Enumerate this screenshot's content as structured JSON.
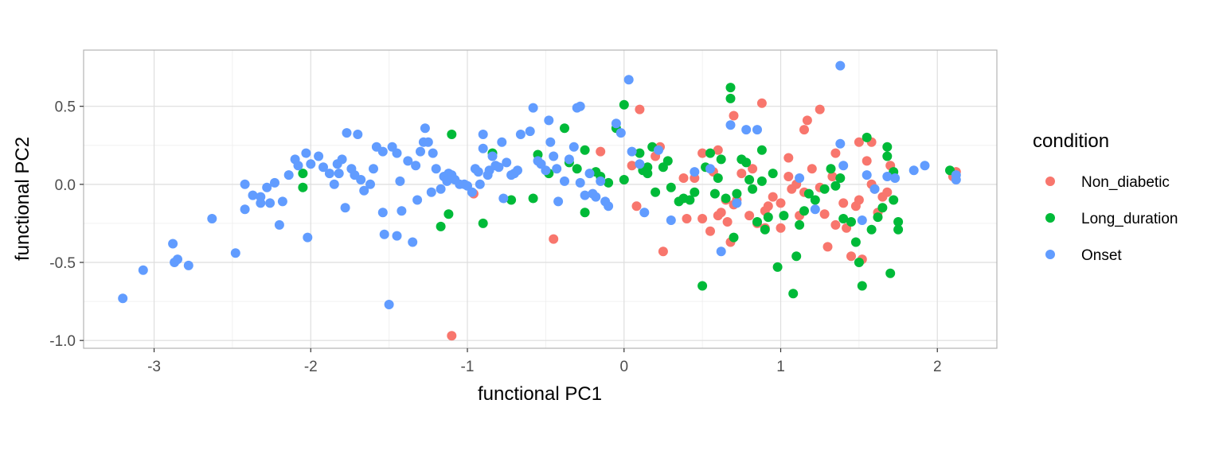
{
  "chart_data": {
    "type": "scatter",
    "title": "",
    "xlabel": "functional PC1",
    "ylabel": "functional PC2",
    "xlim": [
      -3.45,
      2.38
    ],
    "ylim": [
      -1.05,
      0.86
    ],
    "xticks": [
      -3,
      -2,
      -1,
      0,
      1,
      2
    ],
    "xtick_labels": [
      "-3",
      "-2",
      "-1",
      "0",
      "1",
      "2"
    ],
    "yticks": [
      -1.0,
      -0.5,
      0.0,
      0.5
    ],
    "ytick_labels": [
      "-1.0",
      "-0.5",
      "0.0",
      "0.5"
    ],
    "grid": true,
    "legend": {
      "title": "condition",
      "placement": "right"
    },
    "series": [
      {
        "name": "Non_diabetic",
        "color": "#F8766D",
        "points": [
          [
            -1.1,
            -0.97
          ],
          [
            -0.96,
            -0.06
          ],
          [
            -0.45,
            -0.35
          ],
          [
            -0.15,
            0.21
          ],
          [
            0.05,
            0.12
          ],
          [
            0.1,
            0.48
          ],
          [
            0.08,
            -0.14
          ],
          [
            0.25,
            -0.43
          ],
          [
            0.23,
            0.24
          ],
          [
            0.4,
            -0.22
          ],
          [
            0.5,
            0.2
          ],
          [
            0.6,
            0.22
          ],
          [
            0.7,
            0.44
          ],
          [
            0.88,
            0.52
          ],
          [
            1.25,
            0.48
          ],
          [
            1.15,
            0.35
          ],
          [
            1.17,
            0.41
          ],
          [
            1.35,
            0.2
          ],
          [
            1.5,
            0.27
          ],
          [
            1.58,
            0.27
          ],
          [
            0.5,
            -0.22
          ],
          [
            0.55,
            -0.3
          ],
          [
            0.6,
            -0.2
          ],
          [
            0.65,
            -0.1
          ],
          [
            0.7,
            -0.13
          ],
          [
            0.75,
            0.07
          ],
          [
            0.8,
            -0.2
          ],
          [
            0.85,
            -0.25
          ],
          [
            0.9,
            -0.28
          ],
          [
            0.95,
            -0.08
          ],
          [
            1.0,
            -0.12
          ],
          [
            1.05,
            0.17
          ],
          [
            1.07,
            -0.03
          ],
          [
            1.1,
            0.0
          ],
          [
            1.15,
            -0.05
          ],
          [
            1.2,
            0.1
          ],
          [
            1.25,
            -0.02
          ],
          [
            1.3,
            -0.4
          ],
          [
            1.35,
            -0.26
          ],
          [
            1.4,
            -0.12
          ],
          [
            1.45,
            -0.46
          ],
          [
            1.5,
            -0.1
          ],
          [
            1.55,
            0.15
          ],
          [
            1.6,
            -0.03
          ],
          [
            1.62,
            -0.18
          ],
          [
            1.65,
            -0.08
          ],
          [
            1.7,
            0.12
          ],
          [
            1.52,
            -0.48
          ],
          [
            0.68,
            -0.37
          ],
          [
            0.62,
            -0.18
          ],
          [
            0.72,
            -0.1
          ],
          [
            0.57,
            0.08
          ],
          [
            0.45,
            0.04
          ],
          [
            0.92,
            -0.14
          ],
          [
            1.0,
            -0.28
          ],
          [
            1.12,
            -0.2
          ],
          [
            1.28,
            -0.19
          ],
          [
            1.42,
            -0.28
          ],
          [
            1.58,
            0.0
          ],
          [
            1.68,
            -0.05
          ],
          [
            2.1,
            0.05
          ],
          [
            2.12,
            0.08
          ],
          [
            0.2,
            0.18
          ],
          [
            0.38,
            0.04
          ],
          [
            0.82,
            0.1
          ],
          [
            0.9,
            -0.17
          ],
          [
            1.33,
            0.05
          ],
          [
            1.48,
            -0.14
          ],
          [
            1.05,
            0.05
          ],
          [
            0.66,
            -0.24
          ]
        ]
      },
      {
        "name": "Long_duration",
        "color": "#00BA38",
        "points": [
          [
            -2.05,
            0.07
          ],
          [
            -2.05,
            -0.02
          ],
          [
            -1.1,
            0.32
          ],
          [
            -1.12,
            -0.19
          ],
          [
            -1.17,
            -0.27
          ],
          [
            -0.9,
            -0.25
          ],
          [
            -0.84,
            0.2
          ],
          [
            -0.72,
            -0.1
          ],
          [
            -0.58,
            -0.09
          ],
          [
            -0.55,
            0.19
          ],
          [
            -0.48,
            0.07
          ],
          [
            -0.38,
            0.36
          ],
          [
            -0.35,
            0.14
          ],
          [
            -0.3,
            0.1
          ],
          [
            -0.25,
            0.22
          ],
          [
            -0.25,
            -0.18
          ],
          [
            -0.18,
            0.08
          ],
          [
            -0.15,
            0.05
          ],
          [
            -0.1,
            0.01
          ],
          [
            -0.05,
            0.36
          ],
          [
            0.0,
            0.51
          ],
          [
            0.0,
            0.03
          ],
          [
            0.1,
            0.2
          ],
          [
            0.12,
            0.09
          ],
          [
            0.15,
            0.07
          ],
          [
            0.18,
            0.24
          ],
          [
            0.2,
            -0.05
          ],
          [
            0.25,
            0.11
          ],
          [
            0.28,
            0.15
          ],
          [
            0.35,
            -0.11
          ],
          [
            0.38,
            -0.09
          ],
          [
            0.42,
            -0.1
          ],
          [
            0.45,
            -0.05
          ],
          [
            0.5,
            -0.65
          ],
          [
            0.55,
            0.2
          ],
          [
            0.6,
            0.04
          ],
          [
            0.62,
            0.16
          ],
          [
            0.65,
            -0.09
          ],
          [
            0.68,
            0.62
          ],
          [
            0.68,
            0.55
          ],
          [
            0.7,
            -0.34
          ],
          [
            0.72,
            -0.06
          ],
          [
            0.75,
            0.16
          ],
          [
            0.78,
            0.14
          ],
          [
            0.8,
            0.03
          ],
          [
            0.82,
            -0.03
          ],
          [
            0.85,
            -0.24
          ],
          [
            0.88,
            0.22
          ],
          [
            0.9,
            -0.29
          ],
          [
            0.92,
            -0.21
          ],
          [
            0.95,
            0.07
          ],
          [
            0.98,
            -0.53
          ],
          [
            1.02,
            -0.2
          ],
          [
            1.08,
            -0.7
          ],
          [
            1.1,
            -0.46
          ],
          [
            1.12,
            -0.26
          ],
          [
            1.18,
            -0.06
          ],
          [
            1.22,
            -0.1
          ],
          [
            1.28,
            -0.03
          ],
          [
            1.32,
            0.1
          ],
          [
            1.35,
            -0.01
          ],
          [
            1.4,
            -0.22
          ],
          [
            1.45,
            -0.24
          ],
          [
            1.48,
            -0.37
          ],
          [
            1.5,
            -0.5
          ],
          [
            1.52,
            -0.65
          ],
          [
            1.55,
            0.3
          ],
          [
            1.58,
            -0.29
          ],
          [
            1.62,
            -0.21
          ],
          [
            1.65,
            -0.15
          ],
          [
            1.68,
            0.24
          ],
          [
            1.7,
            -0.57
          ],
          [
            1.72,
            0.08
          ],
          [
            1.75,
            -0.24
          ],
          [
            1.75,
            -0.29
          ],
          [
            1.72,
            -0.1
          ],
          [
            1.68,
            0.18
          ],
          [
            2.08,
            0.09
          ],
          [
            0.15,
            0.11
          ],
          [
            0.3,
            -0.02
          ],
          [
            0.52,
            0.11
          ],
          [
            0.58,
            -0.06
          ],
          [
            0.88,
            0.02
          ],
          [
            1.15,
            -0.17
          ],
          [
            1.38,
            0.04
          ]
        ]
      },
      {
        "name": "Onset",
        "color": "#619CFF",
        "points": [
          [
            -3.2,
            -0.73
          ],
          [
            -3.07,
            -0.55
          ],
          [
            -2.88,
            -0.38
          ],
          [
            -2.87,
            -0.5
          ],
          [
            -2.85,
            -0.48
          ],
          [
            -2.78,
            -0.52
          ],
          [
            -2.63,
            -0.22
          ],
          [
            -2.48,
            -0.44
          ],
          [
            -2.42,
            0.0
          ],
          [
            -2.42,
            -0.16
          ],
          [
            -2.37,
            -0.07
          ],
          [
            -2.32,
            -0.08
          ],
          [
            -2.32,
            -0.12
          ],
          [
            -2.28,
            -0.02
          ],
          [
            -2.26,
            -0.12
          ],
          [
            -2.23,
            0.01
          ],
          [
            -2.2,
            -0.26
          ],
          [
            -2.18,
            -0.11
          ],
          [
            -2.14,
            0.06
          ],
          [
            -2.1,
            0.16
          ],
          [
            -2.08,
            0.12
          ],
          [
            -2.03,
            0.2
          ],
          [
            -2.02,
            -0.34
          ],
          [
            -2.0,
            0.13
          ],
          [
            -1.95,
            0.18
          ],
          [
            -1.92,
            0.11
          ],
          [
            -1.88,
            0.07
          ],
          [
            -1.85,
            0.0
          ],
          [
            -1.83,
            0.13
          ],
          [
            -1.82,
            0.07
          ],
          [
            -1.8,
            0.16
          ],
          [
            -1.78,
            -0.15
          ],
          [
            -1.77,
            0.33
          ],
          [
            -1.74,
            0.1
          ],
          [
            -1.72,
            0.06
          ],
          [
            -1.7,
            0.32
          ],
          [
            -1.68,
            0.03
          ],
          [
            -1.66,
            -0.04
          ],
          [
            -1.62,
            0.0
          ],
          [
            -1.6,
            0.1
          ],
          [
            -1.58,
            0.24
          ],
          [
            -1.54,
            0.21
          ],
          [
            -1.54,
            -0.18
          ],
          [
            -1.53,
            -0.32
          ],
          [
            -1.5,
            -0.77
          ],
          [
            -1.48,
            0.24
          ],
          [
            -1.45,
            0.2
          ],
          [
            -1.45,
            -0.33
          ],
          [
            -1.43,
            0.02
          ],
          [
            -1.42,
            -0.17
          ],
          [
            -1.38,
            0.15
          ],
          [
            -1.35,
            -0.37
          ],
          [
            -1.33,
            0.12
          ],
          [
            -1.32,
            -0.1
          ],
          [
            -1.3,
            0.21
          ],
          [
            -1.28,
            0.27
          ],
          [
            -1.27,
            0.36
          ],
          [
            -1.25,
            0.27
          ],
          [
            -1.23,
            -0.05
          ],
          [
            -1.22,
            0.2
          ],
          [
            -1.2,
            0.1
          ],
          [
            -1.17,
            -0.03
          ],
          [
            -1.15,
            0.05
          ],
          [
            -1.13,
            0.02
          ],
          [
            -1.12,
            0.07
          ],
          [
            -1.1,
            0.06
          ],
          [
            -1.08,
            0.03
          ],
          [
            -1.05,
            0.0
          ],
          [
            -1.02,
            0.0
          ],
          [
            -1.0,
            -0.01
          ],
          [
            -0.97,
            -0.05
          ],
          [
            -0.95,
            0.1
          ],
          [
            -0.93,
            0.08
          ],
          [
            -0.92,
            0.0
          ],
          [
            -0.9,
            0.23
          ],
          [
            -0.9,
            0.32
          ],
          [
            -0.87,
            0.06
          ],
          [
            -0.86,
            0.09
          ],
          [
            -0.84,
            0.18
          ],
          [
            -0.82,
            0.12
          ],
          [
            -0.8,
            0.11
          ],
          [
            -0.78,
            0.27
          ],
          [
            -0.77,
            -0.09
          ],
          [
            -0.75,
            0.14
          ],
          [
            -0.72,
            0.06
          ],
          [
            -0.7,
            0.07
          ],
          [
            -0.68,
            0.09
          ],
          [
            -0.66,
            0.32
          ],
          [
            -0.6,
            0.34
          ],
          [
            -0.58,
            0.49
          ],
          [
            -0.55,
            0.15
          ],
          [
            -0.53,
            0.13
          ],
          [
            -0.5,
            0.09
          ],
          [
            -0.48,
            0.41
          ],
          [
            -0.47,
            0.27
          ],
          [
            -0.45,
            0.18
          ],
          [
            -0.43,
            0.1
          ],
          [
            -0.42,
            -0.11
          ],
          [
            -0.38,
            0.02
          ],
          [
            -0.35,
            0.16
          ],
          [
            -0.32,
            0.24
          ],
          [
            -0.3,
            0.49
          ],
          [
            -0.28,
            0.5
          ],
          [
            -0.28,
            0.01
          ],
          [
            -0.25,
            -0.07
          ],
          [
            -0.22,
            0.07
          ],
          [
            -0.2,
            -0.06
          ],
          [
            -0.18,
            -0.08
          ],
          [
            -0.15,
            0.02
          ],
          [
            -0.12,
            -0.11
          ],
          [
            -0.1,
            -0.14
          ],
          [
            -0.05,
            0.39
          ],
          [
            -0.02,
            0.33
          ],
          [
            0.03,
            0.67
          ],
          [
            0.05,
            0.21
          ],
          [
            0.1,
            0.13
          ],
          [
            0.13,
            -0.18
          ],
          [
            0.22,
            0.22
          ],
          [
            0.3,
            -0.23
          ],
          [
            0.45,
            0.08
          ],
          [
            0.55,
            0.1
          ],
          [
            0.62,
            -0.43
          ],
          [
            0.68,
            0.38
          ],
          [
            0.72,
            -0.12
          ],
          [
            0.78,
            0.35
          ],
          [
            0.85,
            0.35
          ],
          [
            1.12,
            0.04
          ],
          [
            1.22,
            -0.16
          ],
          [
            1.38,
            0.26
          ],
          [
            1.38,
            0.76
          ],
          [
            1.4,
            0.12
          ],
          [
            1.52,
            -0.23
          ],
          [
            1.55,
            0.06
          ],
          [
            1.6,
            -0.03
          ],
          [
            1.68,
            0.05
          ],
          [
            1.73,
            0.04
          ],
          [
            1.85,
            0.09
          ],
          [
            1.92,
            0.12
          ],
          [
            2.12,
            0.06
          ],
          [
            2.12,
            0.03
          ]
        ]
      }
    ]
  }
}
